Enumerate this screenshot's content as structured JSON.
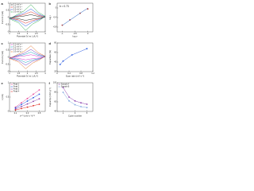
{
  "chart_data": [
    {
      "type": "line",
      "label": "a",
      "xlabel": "Potential (V vs. Li/Li⁺)",
      "ylabel": "Current (mA)",
      "xlim": [
        1,
        3
      ],
      "xticks": [
        1,
        1.5,
        2,
        2.5,
        3
      ],
      "ylim": [
        -1,
        1
      ],
      "yticks": [
        -1,
        -0.5,
        0,
        0.5,
        1
      ],
      "legend": true,
      "x": [
        1.0,
        1.5,
        1.9,
        2.3,
        2.7,
        3.0,
        2.6,
        2.2,
        1.8,
        1.4,
        1.0
      ],
      "series": [
        {
          "name": "0.1 mV s⁻¹",
          "color": "#222222",
          "values": [
            -0.02,
            -0.08,
            -0.2,
            -0.1,
            -0.04,
            0.02,
            0.08,
            0.2,
            0.1,
            0.04,
            -0.02
          ]
        },
        {
          "name": "0.2 mV s⁻¹",
          "color": "#e0302a",
          "values": [
            -0.04,
            -0.16,
            -0.4,
            -0.2,
            -0.08,
            0.04,
            0.16,
            0.4,
            0.2,
            0.08,
            -0.04
          ]
        },
        {
          "name": "0.5 mV s⁻¹",
          "color": "#2a5be0",
          "values": [
            -0.06,
            -0.24,
            -0.6,
            -0.3,
            -0.12,
            0.06,
            0.24,
            0.6,
            0.3,
            0.12,
            -0.06
          ]
        },
        {
          "name": "1.0 mV s⁻¹",
          "color": "#2aa84a",
          "values": [
            -0.09,
            -0.36,
            -0.9,
            -0.45,
            -0.18,
            0.09,
            0.36,
            0.9,
            0.45,
            0.18,
            -0.09
          ]
        }
      ]
    },
    {
      "type": "scatter",
      "label": "b",
      "xlabel": "log v",
      "ylabel": "log i",
      "annotation": "b = 0.73",
      "xlim": [
        -1.2,
        0.2
      ],
      "xticks": [
        -1,
        -0.5,
        0
      ],
      "ylim": [
        -1,
        0.2
      ],
      "yticks": [
        -0.8,
        -0.4,
        0
      ],
      "legend": false,
      "x": [
        -1,
        -0.7,
        -0.3,
        0
      ],
      "series": [
        {
          "color": "#c0392b",
          "values": [
            -0.72,
            -0.5,
            -0.22,
            -0.04
          ],
          "markers": true
        },
        {
          "color": "#1f5fbf",
          "values": [
            -0.73,
            -0.51,
            -0.22,
            -0.01
          ],
          "line": true
        }
      ]
    },
    {
      "type": "line",
      "label": "c",
      "xlabel": "Potential (V vs. Li/Li⁺)",
      "ylabel": "Current (mA)",
      "xlim": [
        1,
        3
      ],
      "xticks": [
        1,
        1.5,
        2,
        2.5,
        3
      ],
      "ylim": [
        -1,
        1
      ],
      "yticks": [
        -1,
        -0.5,
        0,
        0.5,
        1
      ],
      "legend": true,
      "x": [
        1.0,
        1.5,
        1.9,
        2.3,
        2.7,
        3.0,
        2.6,
        2.2,
        1.8,
        1.4,
        1.0
      ],
      "series": [
        {
          "name": "0.1 mV s⁻¹",
          "color": "#d63ad0",
          "values": [
            -0.02,
            -0.07,
            -0.18,
            -0.09,
            -0.04,
            0.02,
            0.07,
            0.18,
            0.09,
            0.04,
            -0.02
          ]
        },
        {
          "name": "0.2 mV s⁻¹",
          "color": "#1fa3c4",
          "values": [
            -0.04,
            -0.14,
            -0.36,
            -0.18,
            -0.08,
            0.04,
            0.14,
            0.36,
            0.18,
            0.08,
            -0.04
          ]
        },
        {
          "name": "0.5 mV s⁻¹",
          "color": "#6b3fc1",
          "values": [
            -0.06,
            -0.22,
            -0.55,
            -0.27,
            -0.11,
            0.06,
            0.22,
            0.55,
            0.27,
            0.11,
            -0.06
          ]
        },
        {
          "name": "1.0 mV s⁻¹",
          "color": "#e0702a",
          "values": [
            -0.08,
            -0.32,
            -0.8,
            -0.4,
            -0.16,
            0.08,
            0.32,
            0.8,
            0.4,
            0.16,
            -0.08
          ]
        }
      ]
    },
    {
      "type": "line",
      "label": "d",
      "xlabel": "Scan rate (mV s⁻¹)",
      "ylabel": "Capacitive (%)",
      "xlim": [
        0,
        1.2
      ],
      "xticks": [
        0,
        0.4,
        0.8,
        1.2
      ],
      "ylim": [
        20,
        80
      ],
      "yticks": [
        20,
        40,
        60,
        80
      ],
      "legend": false,
      "x": [
        0.1,
        0.2,
        0.5,
        1.0
      ],
      "series": [
        {
          "color": "#2a5be0",
          "values": [
            35,
            42,
            55,
            68
          ],
          "markers": true,
          "line": true
        }
      ]
    },
    {
      "type": "line",
      "label": "e",
      "xlabel": "v¹ᐟ² (mV s⁻¹)¹ᐟ²",
      "ylabel": "i (mA)",
      "xlim": [
        0,
        0.6
      ],
      "xticks": [
        0.1,
        0.3,
        0.5
      ],
      "ylim": [
        0,
        1
      ],
      "yticks": [
        0,
        0.5,
        1
      ],
      "legend": true,
      "x": [
        0.1,
        0.2,
        0.3,
        0.4,
        0.5
      ],
      "series": [
        {
          "name": "Peak 1",
          "color": "#e84a9a",
          "values": [
            0.15,
            0.3,
            0.45,
            0.6,
            0.75
          ],
          "markers": true,
          "line": true
        },
        {
          "name": "Peak 2",
          "color": "#2a5be0",
          "values": [
            0.12,
            0.24,
            0.36,
            0.48,
            0.6
          ],
          "markers": true,
          "line": true
        },
        {
          "name": "Peak 3",
          "color": "#8e44ad",
          "values": [
            0.08,
            0.17,
            0.26,
            0.35,
            0.44
          ],
          "markers": true,
          "line": true
        },
        {
          "name": "Peak 4",
          "color": "#e0302a",
          "values": [
            0.05,
            0.1,
            0.15,
            0.2,
            0.25
          ],
          "markers": true,
          "line": true
        }
      ]
    },
    {
      "type": "line",
      "label": "f",
      "xlabel": "Cycle number",
      "ylabel": "Capacity (mAh g⁻¹)",
      "xlim": [
        0,
        6
      ],
      "xticks": [
        1,
        3,
        5
      ],
      "ylim": [
        40,
        100
      ],
      "yticks": [
        40,
        60,
        80,
        100
      ],
      "legend": true,
      "x": [
        1,
        2,
        3,
        4,
        5
      ],
      "series": [
        {
          "name": "Sample A",
          "color": "#8e44ad",
          "values": [
            90,
            70,
            62,
            58,
            55
          ],
          "markers": true,
          "line": true
        },
        {
          "name": "Sample B",
          "color": "#7fa7e0",
          "values": [
            80,
            62,
            54,
            50,
            48
          ],
          "markers": true,
          "line": true
        }
      ]
    }
  ]
}
